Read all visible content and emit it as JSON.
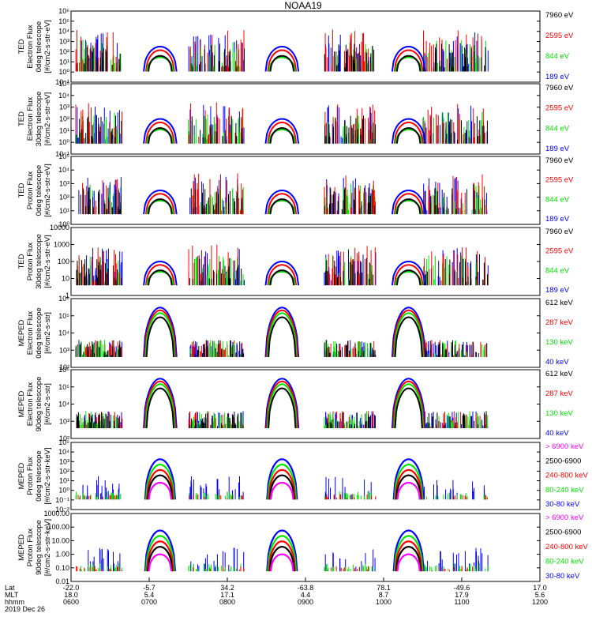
{
  "title": "NOAA19",
  "colors": {
    "black": "#000000",
    "red": "#ff0000",
    "green": "#00e600",
    "blue": "#0000ff",
    "magenta": "#ff00ff"
  },
  "panels": [
    {
      "ylabel": [
        "TED",
        "Electron Flux",
        "0deg telescope",
        "[#/cm2-s-str-eV]"
      ],
      "ytick_labels": [
        "10⁻¹",
        "10⁰",
        "10¹",
        "10²",
        "10³",
        "10⁴",
        "10⁵",
        "10⁶"
      ],
      "legend": [
        {
          "text": "7960 eV",
          "color": "black"
        },
        {
          "text": "2595 eV",
          "color": "red"
        },
        {
          "text": "844 eV",
          "color": "green"
        },
        {
          "text": "189 eV",
          "color": "blue"
        }
      ]
    },
    {
      "ylabel": [
        "TED",
        "Electron Flux",
        "30deg telescope",
        "[#/cm2-s-str-eV]"
      ],
      "ytick_labels": [
        "10⁻¹",
        "10⁰",
        "10¹",
        "10²",
        "10³",
        "10⁴",
        "10⁵"
      ],
      "legend": [
        {
          "text": "7960 eV",
          "color": "black"
        },
        {
          "text": "2595 eV",
          "color": "red"
        },
        {
          "text": "844 eV",
          "color": "green"
        },
        {
          "text": "189 eV",
          "color": "blue"
        }
      ]
    },
    {
      "ylabel": [
        "TED",
        "Proton Flux",
        "0deg telescope",
        "[#/cm2-s-str-eV]"
      ],
      "ytick_labels": [
        "10⁰",
        "10¹",
        "10²",
        "10³",
        "10⁴",
        "10⁵"
      ],
      "legend": [
        {
          "text": "7960 eV",
          "color": "black"
        },
        {
          "text": "2595 eV",
          "color": "red"
        },
        {
          "text": "844 eV",
          "color": "green"
        },
        {
          "text": "189 eV",
          "color": "blue"
        }
      ]
    },
    {
      "ylabel": [
        "TED",
        "Proton Flux",
        "30deg telescope",
        "[#/cm2-s-str-eV]"
      ],
      "ytick_labels": [
        "1",
        "10",
        "100",
        "1000",
        "10000"
      ],
      "legend": [
        {
          "text": "7960 eV",
          "color": "black"
        },
        {
          "text": "2595 eV",
          "color": "red"
        },
        {
          "text": "844 eV",
          "color": "green"
        },
        {
          "text": "189 eV",
          "color": "blue"
        }
      ]
    },
    {
      "ylabel": [
        "MEPED",
        "Electron Flux",
        "0deg telescope",
        "[#/cm2-s-str]"
      ],
      "ytick_labels": [
        "10²",
        "10³",
        "10⁴",
        "10⁵",
        "10⁶"
      ],
      "legend": [
        {
          "text": "612 keV",
          "color": "black"
        },
        {
          "text": "287 keV",
          "color": "red"
        },
        {
          "text": "130 keV",
          "color": "green"
        },
        {
          "text": "40 keV",
          "color": "blue"
        }
      ]
    },
    {
      "ylabel": [
        "MEPED",
        "Electron Flux",
        "90deg telescope",
        "[#/cm2-s-str]"
      ],
      "ytick_labels": [
        "10²",
        "10³",
        "10⁴",
        "10⁵",
        "10⁶"
      ],
      "legend": [
        {
          "text": "612 keV",
          "color": "black"
        },
        {
          "text": "287 keV",
          "color": "red"
        },
        {
          "text": "130 keV",
          "color": "green"
        },
        {
          "text": "40 keV",
          "color": "blue"
        }
      ]
    },
    {
      "ylabel": [
        "MEPED",
        "Proton Flux",
        "0deg telescope",
        "[#/cm2-s-str-keV]"
      ],
      "ytick_labels": [
        "10⁻²",
        "10⁻¹",
        "10⁰",
        "10¹",
        "10²",
        "10³",
        "10⁴",
        "10⁵"
      ],
      "legend": [
        {
          "text": "> 6900 keV",
          "color": "magenta"
        },
        {
          "text": "2500-6900",
          "color": "black"
        },
        {
          "text": "240-800 keV",
          "color": "red"
        },
        {
          "text": "80-240 keV",
          "color": "green"
        },
        {
          "text": "30-80 keV",
          "color": "blue"
        }
      ]
    },
    {
      "ylabel": [
        "MEPED",
        "Proton Flux",
        "90deg telescope",
        "[#/cm2-s-str-keV]"
      ],
      "ytick_labels": [
        "0.01",
        "0.10",
        "1.00",
        "10.00",
        "100.00",
        "1000.00"
      ],
      "legend": [
        {
          "text": "> 6900 keV",
          "color": "magenta"
        },
        {
          "text": "2500-6900",
          "color": "black"
        },
        {
          "text": "240-800 keV",
          "color": "red"
        },
        {
          "text": "80-240 keV",
          "color": "green"
        },
        {
          "text": "30-80 keV",
          "color": "blue"
        }
      ]
    }
  ],
  "xaxis": {
    "row_labels": [
      "Lat",
      "MLT",
      "hhmm"
    ],
    "ticks": [
      {
        "lat": "-22.0",
        "mlt": "18.0",
        "hhmm": "0600"
      },
      {
        "lat": "-5.7",
        "mlt": "5.4",
        "hhmm": "0700"
      },
      {
        "lat": "34.2",
        "mlt": "17.1",
        "hhmm": "0800"
      },
      {
        "lat": "-63.8",
        "mlt": "4.4",
        "hhmm": "0900"
      },
      {
        "lat": "78.1",
        "mlt": "8.7",
        "hhmm": "1000"
      },
      {
        "lat": "-49.6",
        "mlt": "17.9",
        "hhmm": "1100"
      },
      {
        "lat": "17.0",
        "mlt": "5.6",
        "hhmm": "1200"
      }
    ],
    "date": "2019 Dec 26"
  },
  "chart_data": {
    "type": "line",
    "title": "NOAA19",
    "x_time_range": [
      "0600",
      "1200"
    ],
    "scale": "log",
    "pass_peaks_hhmm": [
      "0708",
      "0850",
      "1030"
    ],
    "panel_peaks": [
      {
        "panel": "TED Electron 0deg",
        "peak_flux": "1e3",
        "series": [
          "7960 eV",
          "2595 eV",
          "844 eV",
          "189 eV"
        ]
      },
      {
        "panel": "TED Electron 30deg",
        "peak_flux": "1e3",
        "series": [
          "7960 eV",
          "2595 eV",
          "844 eV",
          "189 eV"
        ]
      },
      {
        "panel": "TED Proton 0deg",
        "peak_flux": "1e4",
        "series": [
          "7960 eV",
          "2595 eV",
          "844 eV",
          "189 eV"
        ]
      },
      {
        "panel": "TED Proton 30deg",
        "peak_flux": "3000",
        "series": [
          "7960 eV",
          "2595 eV",
          "844 eV",
          "189 eV"
        ]
      },
      {
        "panel": "MEPED Electron 0deg",
        "peak_flux": "1e6",
        "series": [
          "612 keV",
          "287 keV",
          "130 keV",
          "40 keV"
        ]
      },
      {
        "panel": "MEPED Electron 90deg",
        "peak_flux": "1e5",
        "series": [
          "612 keV",
          "287 keV",
          "130 keV",
          "40 keV"
        ]
      },
      {
        "panel": "MEPED Proton 0deg",
        "peak_flux": "1e3",
        "series": [
          "> 6900 keV",
          "2500-6900",
          "240-800 keV",
          "80-240 keV",
          "30-80 keV"
        ]
      },
      {
        "panel": "MEPED Proton 90deg",
        "peak_flux": "1000",
        "series": [
          "> 6900 keV",
          "2500-6900",
          "240-800 keV",
          "80-240 keV",
          "30-80 keV"
        ]
      }
    ]
  }
}
